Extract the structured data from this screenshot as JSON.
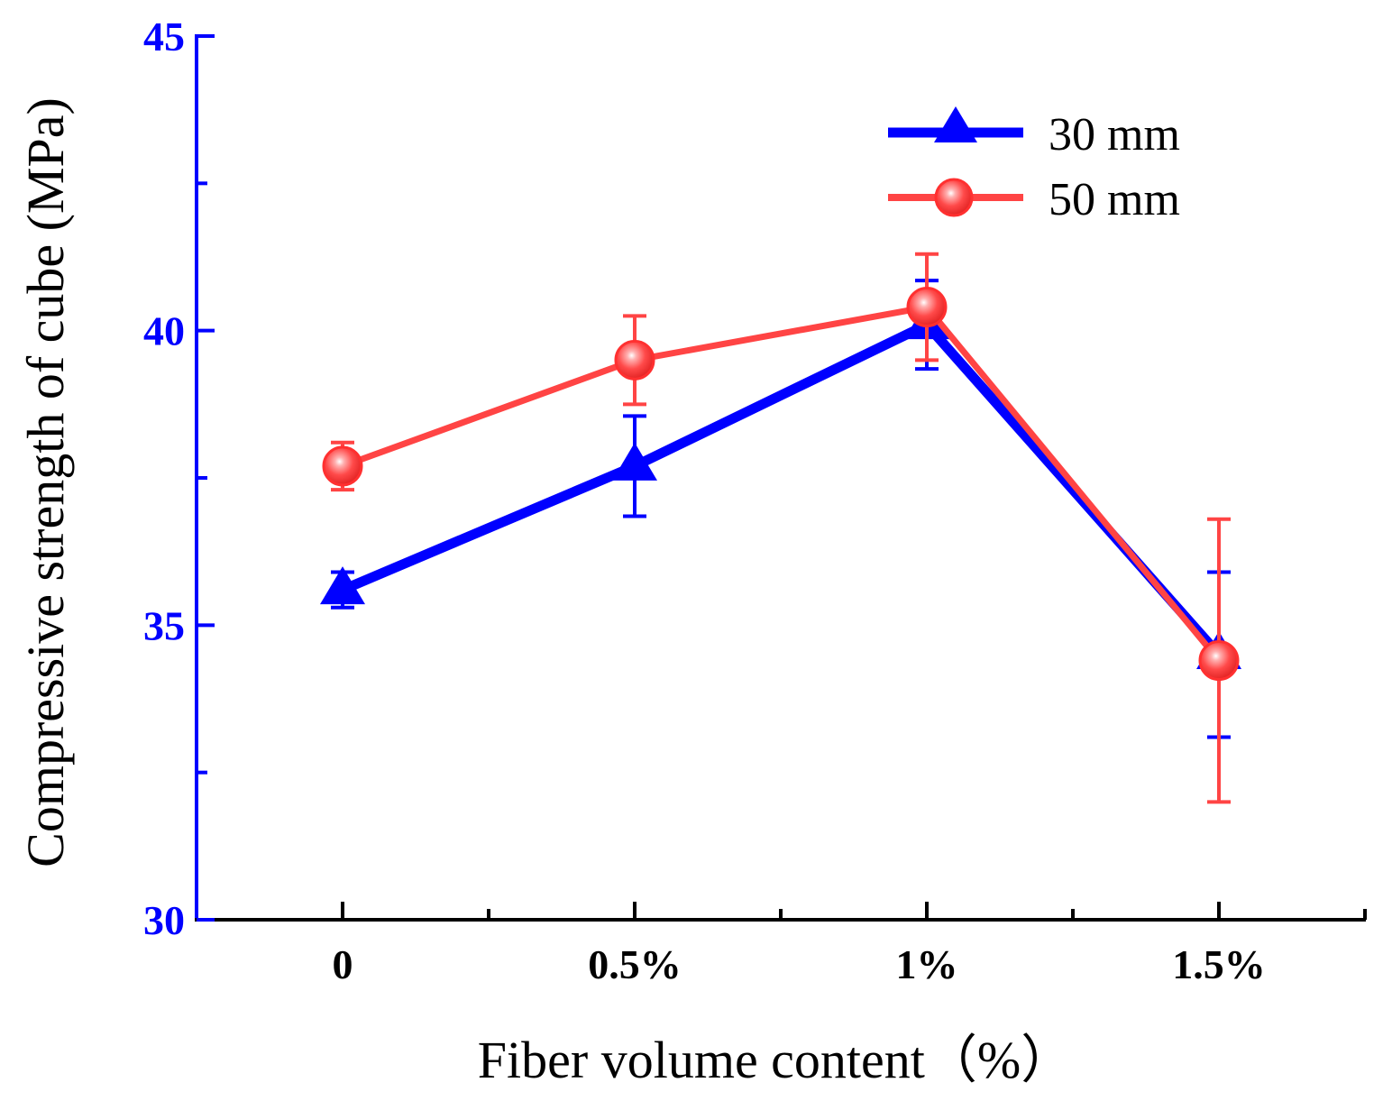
{
  "colors": {
    "y_axis": "#0000ff",
    "x_axis": "#000000",
    "series_30": "#0000ff",
    "series_50": "#ff4444"
  },
  "chart_data": {
    "type": "line",
    "title": "",
    "xlabel": "Fiber volume content（%）",
    "ylabel": "Compressive strength of cube (MPa)",
    "categories": [
      "0",
      "0.5%",
      "1%",
      "1.5%"
    ],
    "ylim": [
      30,
      45
    ],
    "yticks": [
      "30",
      "35",
      "40",
      "45"
    ],
    "legend_position": "top-right",
    "series": [
      {
        "name": "30 mm",
        "marker": "triangle",
        "values": [
          35.6,
          37.7,
          40.1,
          34.5
        ],
        "errors": [
          0.3,
          0.85,
          0.75,
          1.4
        ]
      },
      {
        "name": "50 mm",
        "marker": "circle",
        "values": [
          37.7,
          39.5,
          40.4,
          34.4
        ],
        "errors": [
          0.4,
          0.75,
          0.9,
          2.4
        ]
      }
    ]
  }
}
